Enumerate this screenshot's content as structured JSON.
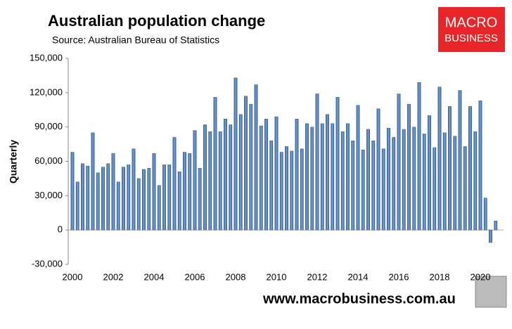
{
  "chart_data": {
    "type": "bar",
    "title": "Australian population change",
    "subtitle": "Source: Australian Bureau of Statistics",
    "y_label": "Quarterly",
    "categories": [
      "2000",
      null,
      null,
      null,
      null,
      null,
      null,
      null,
      "2002",
      null,
      null,
      null,
      null,
      null,
      null,
      null,
      "2004",
      null,
      null,
      null,
      null,
      null,
      null,
      null,
      "2006",
      null,
      null,
      null,
      null,
      null,
      null,
      null,
      "2008",
      null,
      null,
      null,
      null,
      null,
      null,
      null,
      "2010",
      null,
      null,
      null,
      null,
      null,
      null,
      null,
      "2012",
      null,
      null,
      null,
      null,
      null,
      null,
      null,
      "2014",
      null,
      null,
      null,
      null,
      null,
      null,
      null,
      "2016",
      null,
      null,
      null,
      null,
      null,
      null,
      null,
      "2018",
      null,
      null,
      null,
      null,
      null,
      null,
      null,
      "2020",
      null,
      null,
      null
    ],
    "values": [
      68000,
      42000,
      58000,
      56000,
      85000,
      50000,
      55000,
      58000,
      67000,
      42000,
      55000,
      57000,
      71000,
      45000,
      53000,
      54000,
      67000,
      39000,
      57000,
      57000,
      81000,
      51000,
      68000,
      67000,
      87000,
      54000,
      92000,
      86000,
      116000,
      86000,
      97000,
      92000,
      133000,
      101000,
      117000,
      110000,
      127000,
      91000,
      97000,
      78000,
      99000,
      68000,
      73000,
      69000,
      97000,
      71000,
      93000,
      90000,
      119000,
      93000,
      101000,
      93000,
      116000,
      86000,
      93000,
      78000,
      109000,
      70000,
      88000,
      78000,
      106000,
      71000,
      89000,
      81000,
      119000,
      88000,
      110000,
      90000,
      129000,
      84000,
      100000,
      72000,
      125000,
      85000,
      108000,
      82000,
      122000,
      73000,
      108000,
      86000,
      113000,
      28000,
      -11000,
      8000
    ],
    "color": "#4f81bd",
    "ylim": [
      -30000,
      150000
    ],
    "yticks": [
      {
        "value": -30000,
        "label": "-30,000"
      },
      0,
      {
        "value": 30000,
        "label": "30,000"
      },
      {
        "value": 60000,
        "label": "60,000"
      },
      {
        "value": 90000,
        "label": "90,000"
      },
      {
        "value": 120000,
        "label": "120,000"
      },
      {
        "value": 150000,
        "label": "150,000"
      }
    ],
    "grid": false
  },
  "brand": {
    "line1": "MACRO",
    "line2": "BUSINESS"
  },
  "footer": "www.macrobusiness.com.au"
}
